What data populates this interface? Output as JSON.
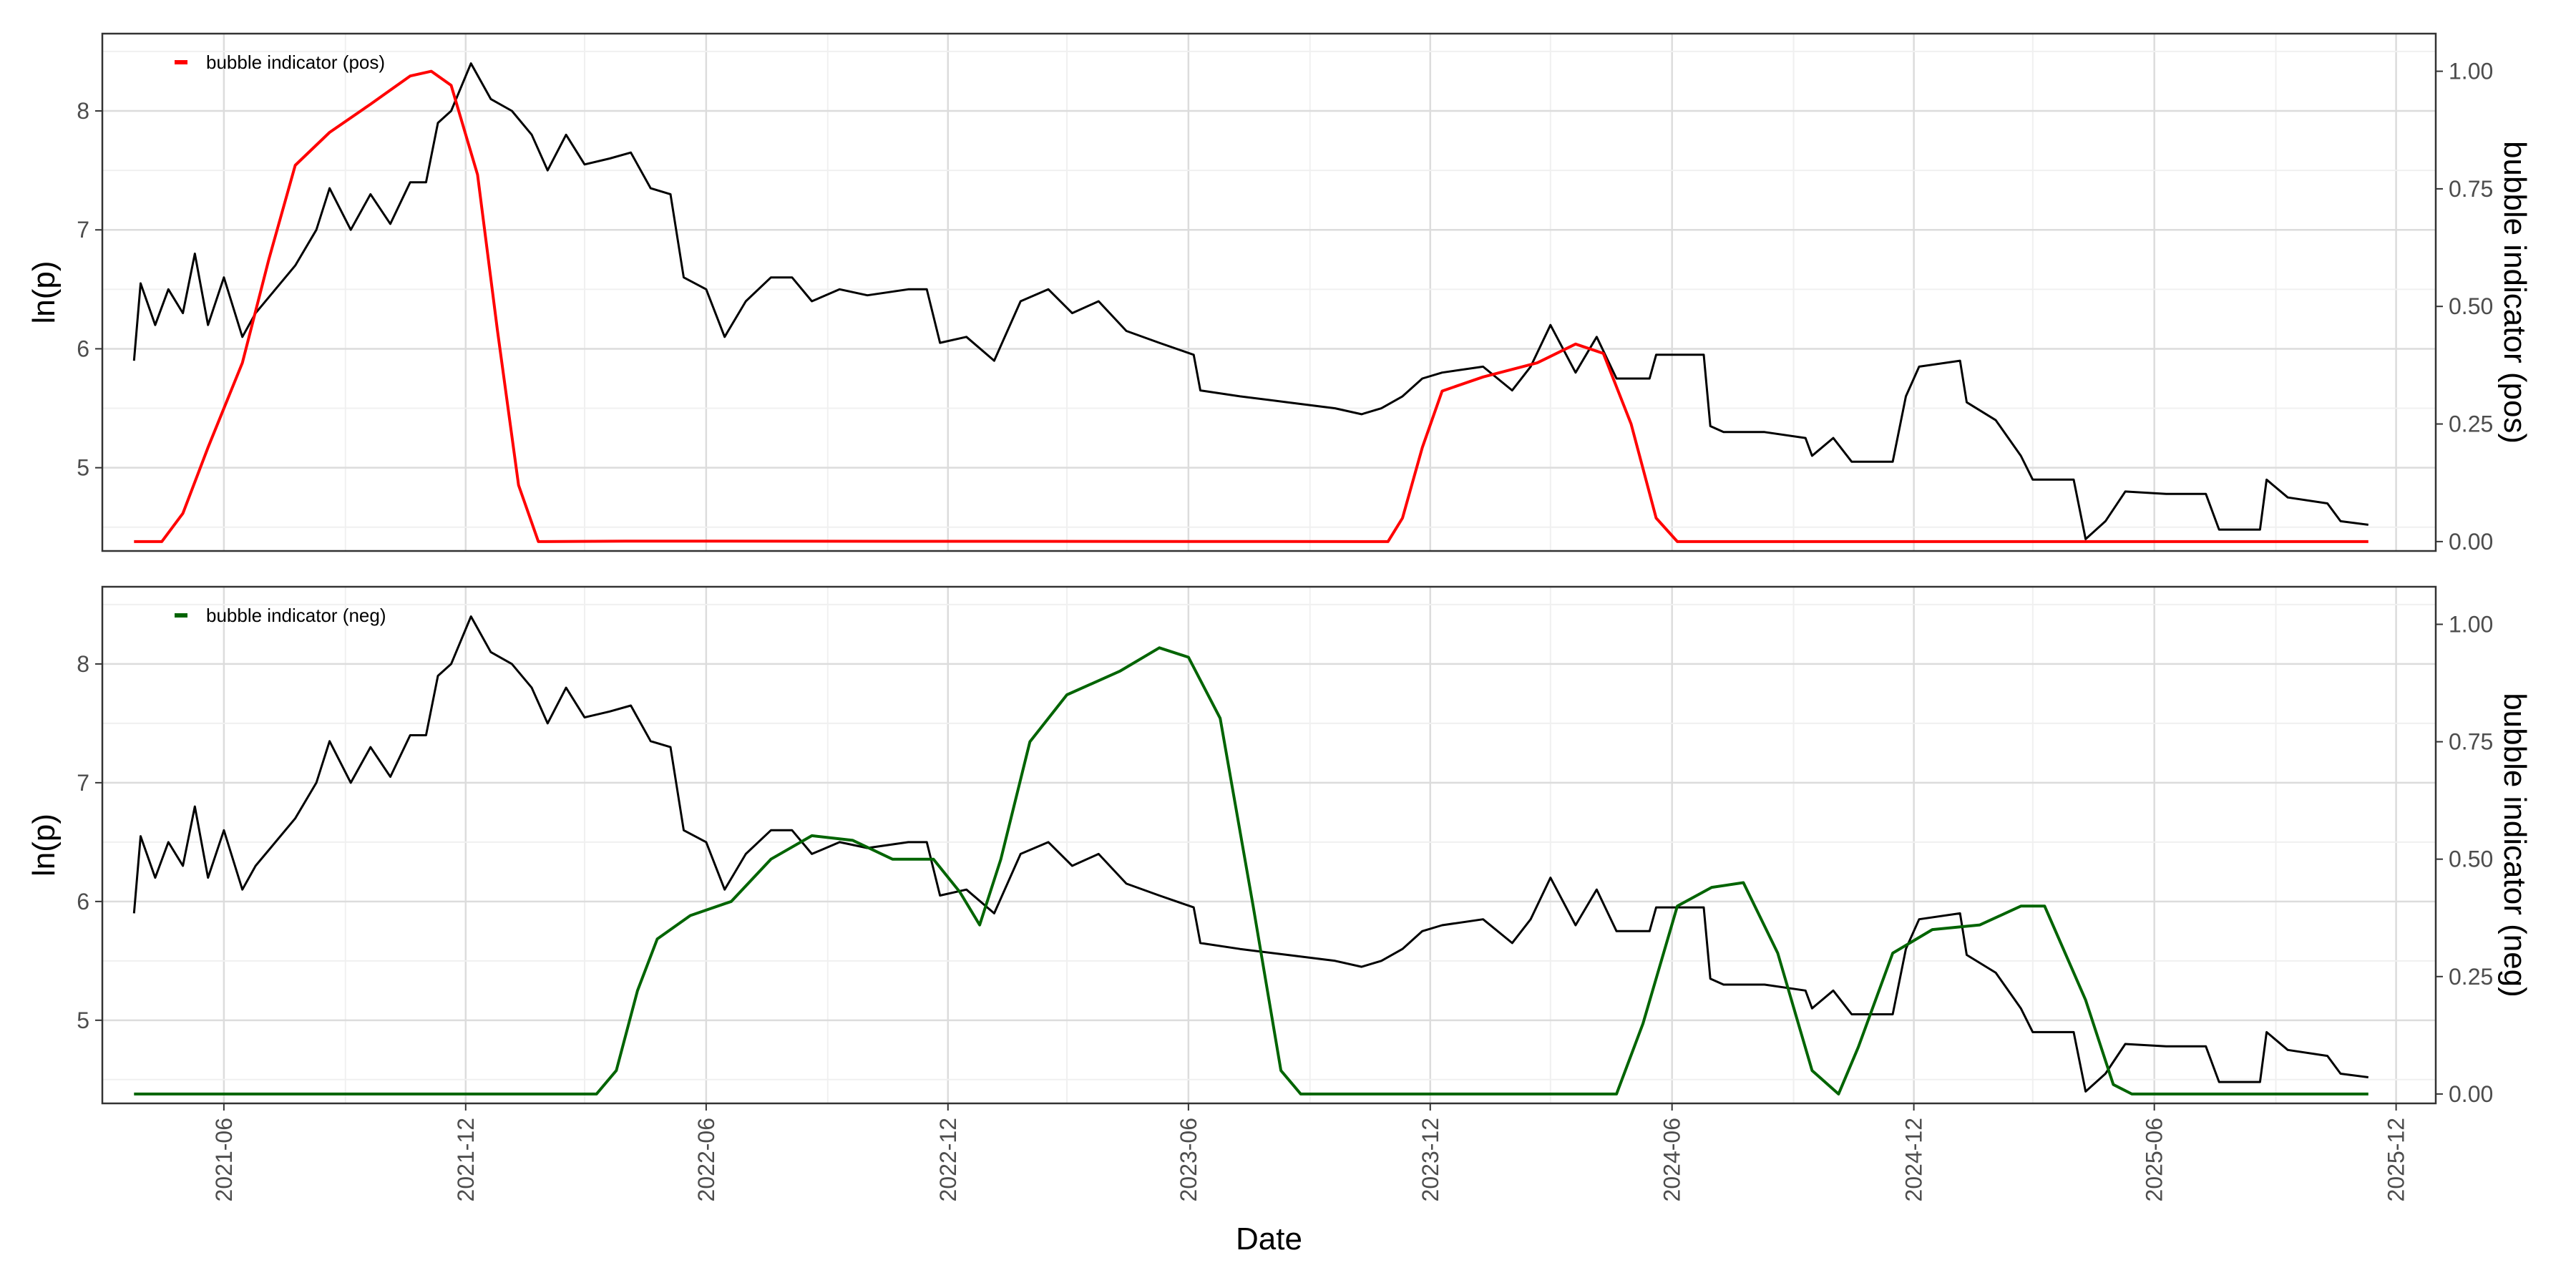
{
  "chart_data": [
    {
      "type": "line",
      "ylabel": "ln(p)",
      "y2label": "bubble indicator (pos)",
      "legend": "bubble indicator (pos)",
      "legend_position": "top-left",
      "grid": true,
      "x_range": [
        "2021-03-01",
        "2025-12-31"
      ],
      "ylim": [
        4.3,
        8.65
      ],
      "y2lim": [
        -0.02,
        1.08
      ],
      "yticks": [
        5,
        6,
        7,
        8
      ],
      "y2ticks": [
        "0.00",
        "0.25",
        "0.50",
        "0.75",
        "1.00"
      ],
      "series": [
        {
          "color": "#000000",
          "axis": "left",
          "points": [
            [
              "2021-03-25",
              5.9
            ],
            [
              "2021-03-30",
              6.55
            ],
            [
              "2021-04-10",
              6.2
            ],
            [
              "2021-04-20",
              6.5
            ],
            [
              "2021-05-01",
              6.3
            ],
            [
              "2021-05-10",
              6.8
            ],
            [
              "2021-05-20",
              6.2
            ],
            [
              "2021-06-01",
              6.6
            ],
            [
              "2021-06-15",
              6.1
            ],
            [
              "2021-06-25",
              6.3
            ],
            [
              "2021-07-10",
              6.5
            ],
            [
              "2021-07-25",
              6.7
            ],
            [
              "2021-08-10",
              7.0
            ],
            [
              "2021-08-20",
              7.35
            ],
            [
              "2021-09-05",
              7.0
            ],
            [
              "2021-09-20",
              7.3
            ],
            [
              "2021-10-05",
              7.05
            ],
            [
              "2021-10-20",
              7.4
            ],
            [
              "2021-11-01",
              7.4
            ],
            [
              "2021-11-10",
              7.9
            ],
            [
              "2021-11-20",
              8.0
            ],
            [
              "2021-12-05",
              8.4
            ],
            [
              "2021-12-20",
              8.1
            ],
            [
              "2022-01-05",
              8.0
            ],
            [
              "2022-01-20",
              7.8
            ],
            [
              "2022-02-01",
              7.5
            ],
            [
              "2022-02-15",
              7.8
            ],
            [
              "2022-03-01",
              7.55
            ],
            [
              "2022-03-20",
              7.6
            ],
            [
              "2022-04-05",
              7.65
            ],
            [
              "2022-04-20",
              7.35
            ],
            [
              "2022-05-05",
              7.3
            ],
            [
              "2022-05-15",
              6.6
            ],
            [
              "2022-06-01",
              6.5
            ],
            [
              "2022-06-15",
              6.1
            ],
            [
              "2022-07-01",
              6.4
            ],
            [
              "2022-07-20",
              6.6
            ],
            [
              "2022-08-05",
              6.6
            ],
            [
              "2022-08-20",
              6.4
            ],
            [
              "2022-09-10",
              6.5
            ],
            [
              "2022-10-01",
              6.45
            ],
            [
              "2022-11-01",
              6.5
            ],
            [
              "2022-11-15",
              6.5
            ],
            [
              "2022-11-25",
              6.05
            ],
            [
              "2022-12-15",
              6.1
            ],
            [
              "2023-01-05",
              5.9
            ],
            [
              "2023-01-25",
              6.4
            ],
            [
              "2023-02-15",
              6.5
            ],
            [
              "2023-03-05",
              6.3
            ],
            [
              "2023-03-25",
              6.4
            ],
            [
              "2023-04-15",
              6.15
            ],
            [
              "2023-05-10",
              6.05
            ],
            [
              "2023-06-05",
              5.95
            ],
            [
              "2023-06-10",
              5.65
            ],
            [
              "2023-07-10",
              5.6
            ],
            [
              "2023-08-15",
              5.55
            ],
            [
              "2023-09-20",
              5.5
            ],
            [
              "2023-10-10",
              5.45
            ],
            [
              "2023-10-25",
              5.5
            ],
            [
              "2023-11-10",
              5.6
            ],
            [
              "2023-11-25",
              5.75
            ],
            [
              "2023-12-10",
              5.8
            ],
            [
              "2024-01-10",
              5.85
            ],
            [
              "2024-02-01",
              5.65
            ],
            [
              "2024-02-15",
              5.85
            ],
            [
              "2024-03-01",
              6.2
            ],
            [
              "2024-03-20",
              5.8
            ],
            [
              "2024-04-05",
              6.1
            ],
            [
              "2024-04-20",
              5.75
            ],
            [
              "2024-05-15",
              5.75
            ],
            [
              "2024-05-20",
              5.95
            ],
            [
              "2024-06-25",
              5.95
            ],
            [
              "2024-06-30",
              5.35
            ],
            [
              "2024-07-10",
              5.3
            ],
            [
              "2024-08-10",
              5.3
            ],
            [
              "2024-09-10",
              5.25
            ],
            [
              "2024-09-15",
              5.1
            ],
            [
              "2024-10-01",
              5.25
            ],
            [
              "2024-10-15",
              5.05
            ],
            [
              "2024-11-15",
              5.05
            ],
            [
              "2024-11-25",
              5.6
            ],
            [
              "2024-12-05",
              5.85
            ],
            [
              "2025-01-05",
              5.9
            ],
            [
              "2025-01-10",
              5.55
            ],
            [
              "2025-02-01",
              5.4
            ],
            [
              "2025-02-20",
              5.1
            ],
            [
              "2025-03-01",
              4.9
            ],
            [
              "2025-04-01",
              4.9
            ],
            [
              "2025-04-10",
              4.4
            ],
            [
              "2025-04-25",
              4.55
            ],
            [
              "2025-05-10",
              4.8
            ],
            [
              "2025-06-10",
              4.78
            ],
            [
              "2025-07-10",
              4.78
            ],
            [
              "2025-07-20",
              4.48
            ],
            [
              "2025-08-20",
              4.48
            ],
            [
              "2025-08-25",
              4.9
            ],
            [
              "2025-09-10",
              4.75
            ],
            [
              "2025-10-10",
              4.7
            ],
            [
              "2025-10-20",
              4.55
            ],
            [
              "2025-11-10",
              4.52
            ]
          ]
        },
        {
          "name": "bubble indicator (pos)",
          "color": "#ff0000",
          "axis": "right",
          "points": [
            [
              "2021-03-25",
              0.0
            ],
            [
              "2021-04-15",
              0.0
            ],
            [
              "2021-05-01",
              0.06
            ],
            [
              "2021-05-20",
              0.2
            ],
            [
              "2021-06-15",
              0.38
            ],
            [
              "2021-07-05",
              0.6
            ],
            [
              "2021-07-25",
              0.8
            ],
            [
              "2021-08-20",
              0.87
            ],
            [
              "2021-09-20",
              0.93
            ],
            [
              "2021-10-20",
              0.99
            ],
            [
              "2021-11-05",
              1.0
            ],
            [
              "2021-11-20",
              0.97
            ],
            [
              "2021-12-10",
              0.78
            ],
            [
              "2021-12-25",
              0.45
            ],
            [
              "2022-01-10",
              0.12
            ],
            [
              "2022-01-25",
              0.0
            ],
            [
              "2022-04-01",
              0.001
            ],
            [
              "2023-10-30",
              0.0
            ],
            [
              "2023-11-10",
              0.05
            ],
            [
              "2023-11-25",
              0.2
            ],
            [
              "2023-12-10",
              0.32
            ],
            [
              "2024-01-10",
              0.35
            ],
            [
              "2024-02-20",
              0.38
            ],
            [
              "2024-03-20",
              0.42
            ],
            [
              "2024-04-10",
              0.4
            ],
            [
              "2024-05-01",
              0.25
            ],
            [
              "2024-05-20",
              0.05
            ],
            [
              "2024-06-05",
              0.0
            ],
            [
              "2025-11-10",
              0.0
            ]
          ]
        }
      ]
    },
    {
      "type": "line",
      "xlabel": "Date",
      "ylabel": "ln(p)",
      "y2label": "bubble indicator (neg)",
      "legend": "bubble indicator (neg)",
      "legend_position": "top-left",
      "grid": true,
      "x_range": [
        "2021-03-01",
        "2025-12-31"
      ],
      "xticks": [
        "2021-06",
        "2021-12",
        "2022-06",
        "2022-12",
        "2023-06",
        "2023-12",
        "2024-06",
        "2024-12",
        "2025-06",
        "2025-12"
      ],
      "ylim": [
        4.3,
        8.65
      ],
      "y2lim": [
        -0.02,
        1.08
      ],
      "yticks": [
        5,
        6,
        7,
        8
      ],
      "y2ticks": [
        "0.00",
        "0.25",
        "0.50",
        "0.75",
        "1.00"
      ],
      "series": [
        {
          "color": "#000000",
          "axis": "left",
          "points_ref": "same as upper panel"
        },
        {
          "name": "bubble indicator (neg)",
          "color": "#006400",
          "axis": "right",
          "points": [
            [
              "2021-03-25",
              0.0
            ],
            [
              "2022-03-10",
              0.0
            ],
            [
              "2022-03-25",
              0.05
            ],
            [
              "2022-04-10",
              0.22
            ],
            [
              "2022-04-25",
              0.33
            ],
            [
              "2022-05-20",
              0.38
            ],
            [
              "2022-06-20",
              0.41
            ],
            [
              "2022-07-20",
              0.5
            ],
            [
              "2022-08-20",
              0.55
            ],
            [
              "2022-09-20",
              0.54
            ],
            [
              "2022-10-20",
              0.5
            ],
            [
              "2022-11-20",
              0.5
            ],
            [
              "2022-12-10",
              0.43
            ],
            [
              "2022-12-25",
              0.36
            ],
            [
              "2023-01-10",
              0.5
            ],
            [
              "2023-02-01",
              0.75
            ],
            [
              "2023-03-01",
              0.85
            ],
            [
              "2023-04-10",
              0.9
            ],
            [
              "2023-05-10",
              0.95
            ],
            [
              "2023-06-01",
              0.93
            ],
            [
              "2023-06-25",
              0.8
            ],
            [
              "2023-07-20",
              0.4
            ],
            [
              "2023-08-10",
              0.05
            ],
            [
              "2023-08-25",
              0.0
            ],
            [
              "2024-04-20",
              0.0
            ],
            [
              "2024-05-10",
              0.15
            ],
            [
              "2024-06-05",
              0.4
            ],
            [
              "2024-07-01",
              0.44
            ],
            [
              "2024-07-25",
              0.45
            ],
            [
              "2024-08-20",
              0.3
            ],
            [
              "2024-09-15",
              0.05
            ],
            [
              "2024-10-05",
              0.0
            ],
            [
              "2024-10-20",
              0.1
            ],
            [
              "2024-11-15",
              0.3
            ],
            [
              "2024-12-15",
              0.35
            ],
            [
              "2025-01-20",
              0.36
            ],
            [
              "2025-02-20",
              0.4
            ],
            [
              "2025-03-10",
              0.4
            ],
            [
              "2025-04-10",
              0.2
            ],
            [
              "2025-05-01",
              0.02
            ],
            [
              "2025-05-15",
              0.0
            ],
            [
              "2025-11-10",
              0.0
            ]
          ]
        }
      ]
    }
  ]
}
